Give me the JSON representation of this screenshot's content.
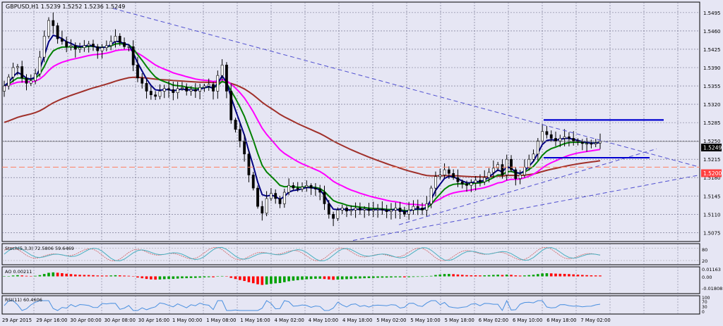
{
  "colors": {
    "background": "#e6e6f4",
    "grid": "#6a6a84",
    "candle_body": "#000000",
    "candle_wick": "#000000",
    "ma_fast": "#000080",
    "ma_mid": "#008000",
    "ma_slow": "#ff00ff",
    "ma_long": "#a0302a",
    "trendline_dash": "#5050d0",
    "level_blue": "#0000d0",
    "level_red": "#ff8060",
    "price_tag_bg": "#000000",
    "price_tag_red": "#ff4040",
    "ao_up": "#00a000",
    "ao_down": "#ff0000",
    "rsi_line": "#4a90e0",
    "stoch_main": "#4ab0c0",
    "stoch_signal": "#d06060"
  },
  "chart_data": {
    "type": "candlestick",
    "symbol_header": "GBPUSD,H1  1.5239 1.5252 1.5236 1.5249",
    "y_ticks": [
      "1.5495",
      "1.5460",
      "1.5425",
      "1.5390",
      "1.5355",
      "1.5320",
      "1.5285",
      "1.5250",
      "1.5215",
      "1.5180",
      "1.5145",
      "1.5110",
      "1.5075"
    ],
    "ylim": [
      1.5058,
      1.5515
    ],
    "current_price_label": "1.5249",
    "current_price": 1.5249,
    "red_level_label": "1.5200",
    "red_level": 1.52,
    "x_tick_labels": [
      "29 Apr 2015",
      "29 Apr 16:00",
      "30 Apr 00:00",
      "30 Apr 08:00",
      "30 Apr 16:00",
      "1 May 00:00",
      "1 May 08:00",
      "1 May 16:00",
      "4 May 02:00",
      "4 May 10:00",
      "4 May 18:00",
      "5 May 02:00",
      "5 May 10:00",
      "5 May 18:00",
      "6 May 02:00",
      "6 May 10:00",
      "6 May 18:00",
      "7 May 02:00"
    ],
    "close_series": [
      1.5355,
      1.5372,
      1.539,
      1.5392,
      1.537,
      1.536,
      1.5365,
      1.5378,
      1.541,
      1.545,
      1.548,
      1.547,
      1.5445,
      1.544,
      1.543,
      1.5432,
      1.5425,
      1.5428,
      1.5432,
      1.5435,
      1.543,
      1.5422,
      1.5428,
      1.5432,
      1.544,
      1.545,
      1.5438,
      1.543,
      1.543,
      1.5395,
      1.537,
      1.536,
      1.5345,
      1.5338,
      1.5335,
      1.5345,
      1.535,
      1.5348,
      1.5342,
      1.535,
      1.5352,
      1.5345,
      1.5348,
      1.5345,
      1.5352,
      1.5355,
      1.5358,
      1.5345,
      1.5375,
      1.5395,
      1.5345,
      1.529,
      1.5272,
      1.525,
      1.5225,
      1.5185,
      1.516,
      1.5125,
      1.5112,
      1.514,
      1.515,
      1.514,
      1.513,
      1.5152,
      1.5165,
      1.516,
      1.5158,
      1.5162,
      1.5165,
      1.516,
      1.5158,
      1.5152,
      1.513,
      1.511,
      1.5102,
      1.5118,
      1.5122,
      1.5116,
      1.5118,
      1.5122,
      1.5118,
      1.512,
      1.5117,
      1.5119,
      1.512,
      1.5118,
      1.5115,
      1.5118,
      1.5122,
      1.5115,
      1.511,
      1.5118,
      1.5125,
      1.5122,
      1.5118,
      1.513,
      1.516,
      1.5182,
      1.5185,
      1.5195,
      1.5188,
      1.518,
      1.5172,
      1.5168,
      1.5165,
      1.517,
      1.5175,
      1.5172,
      1.518,
      1.519,
      1.5198,
      1.5205,
      1.5185,
      1.5215,
      1.5195,
      1.5178,
      1.5185,
      1.52,
      1.5215,
      1.5225,
      1.525,
      1.5268,
      1.5262,
      1.5255,
      1.525,
      1.5255,
      1.5258,
      1.5255,
      1.525,
      1.5248,
      1.5245,
      1.5245,
      1.5244,
      1.5246,
      1.5249
    ],
    "indicators": {
      "stoch_label": "Stoch(5,3,3) 72.5806 59.6469",
      "stoch_ticks": [
        "80",
        "20"
      ],
      "ao_label": "AO 0.00211",
      "ao_ticks": [
        "0.01163",
        "0.00",
        "-0.01808"
      ],
      "rsi_label": "RSI(11) 60.4606",
      "rsi_ticks": [
        "100",
        "70",
        "30",
        "0"
      ]
    }
  }
}
